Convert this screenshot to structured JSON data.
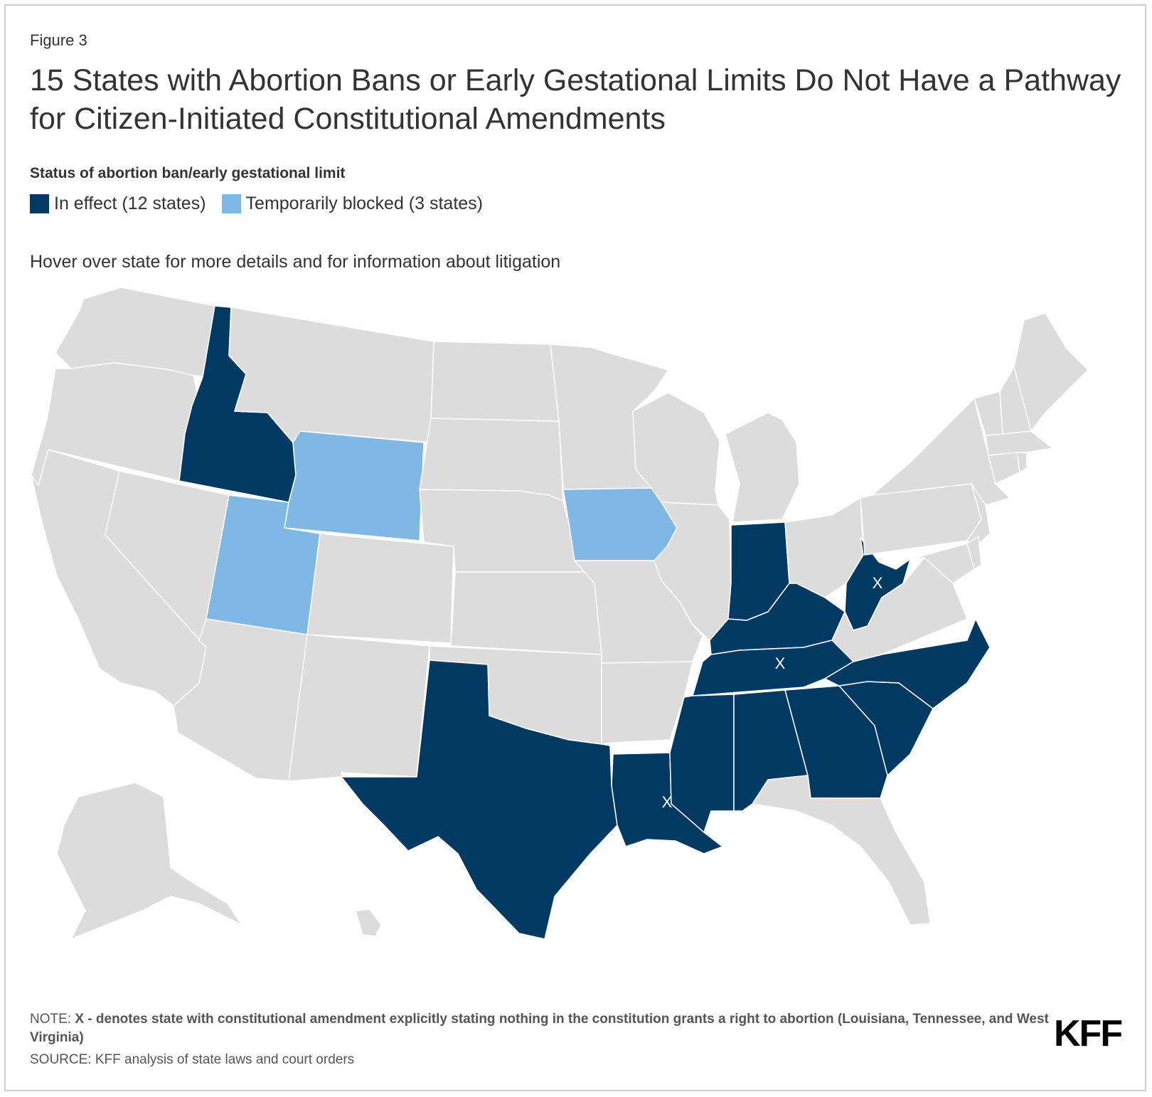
{
  "header": {
    "figure_label": "Figure 3",
    "title": "15 States with Abortion Bans or Early Gestational Limits Do Not Have a Pathway for Citizen-Initiated Constitutional Amendments"
  },
  "legend": {
    "title": "Status of abortion ban/early gestational limit",
    "items": [
      {
        "label": "In effect (12 states)",
        "color": "#003a63"
      },
      {
        "label": "Temporarily blocked (3 states)",
        "color": "#7fb8e2"
      }
    ]
  },
  "hover_note": "Hover over state for more details and for information about litigation",
  "map": {
    "default_color": "#dcdcdc",
    "border_color": "#ffffff",
    "states_in_effect": [
      "Idaho",
      "Texas",
      "Louisiana",
      "Mississippi",
      "Alabama",
      "Georgia",
      "South Carolina",
      "North Carolina",
      "Tennessee",
      "Kentucky",
      "Indiana",
      "West Virginia"
    ],
    "states_temporarily_blocked": [
      "Wyoming",
      "Utah",
      "Iowa"
    ],
    "x_marker": "X",
    "x_states": [
      "Louisiana",
      "Tennessee",
      "West Virginia"
    ]
  },
  "footer": {
    "note_prefix": "NOTE: ",
    "note_bold": "X - denotes state with constitutional amendment explicitly stating nothing in the constitution grants a right to abortion (Louisiana, Tennessee, and West Virginia)",
    "source": "SOURCE: KFF analysis of state laws and court orders",
    "logo": "KFF"
  }
}
